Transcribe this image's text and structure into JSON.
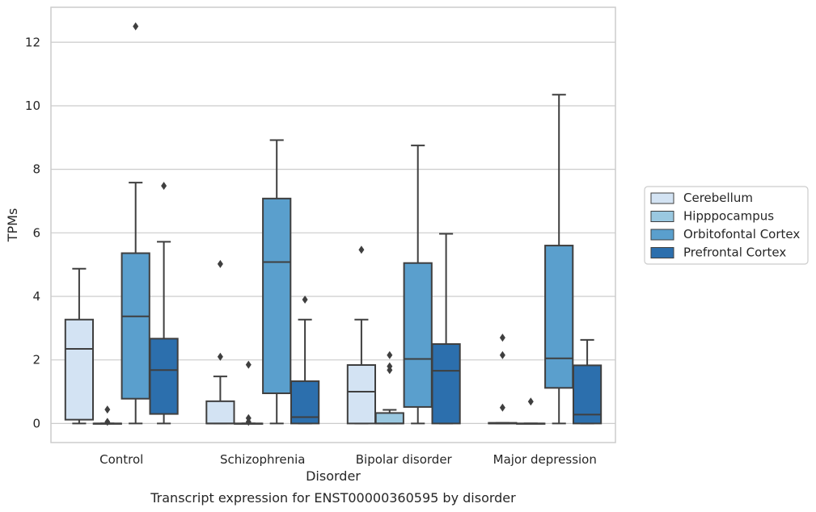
{
  "chart_data": {
    "type": "box",
    "xlabel": "Disorder",
    "ylabel": "TPMs",
    "caption": "Transcript expression for ENST00000360595 by disorder",
    "ylim": [
      -0.6,
      13.1
    ],
    "yticks": [
      0,
      2,
      4,
      6,
      8,
      10,
      12
    ],
    "grid": "horizontal",
    "legend_position": "right",
    "categories": [
      "Control",
      "Schizophrenia",
      "Bipolar disorder",
      "Major depression"
    ],
    "series": [
      {
        "name": "Cerebellum",
        "color": "#d3e3f3",
        "boxes": [
          {
            "whislo": 0.0,
            "q1": 0.12,
            "med": 2.35,
            "q3": 3.27,
            "whishi": 4.87,
            "fliers": []
          },
          {
            "whislo": 0.0,
            "q1": 0.0,
            "med": 0.0,
            "q3": 0.7,
            "whishi": 1.48,
            "fliers": [
              2.1,
              5.02
            ]
          },
          {
            "whislo": 0.0,
            "q1": 0.0,
            "med": 1.0,
            "q3": 1.84,
            "whishi": 3.27,
            "fliers": [
              5.47
            ]
          },
          {
            "whislo": 0.0,
            "q1": 0.0,
            "med": 0.0,
            "q3": 0.02,
            "whishi": 0.02,
            "fliers": [
              0.5,
              2.15,
              2.7
            ]
          }
        ]
      },
      {
        "name": "Hipppocampus",
        "color": "#9ac8e0",
        "boxes": [
          {
            "whislo": 0.0,
            "q1": 0.0,
            "med": 0.0,
            "q3": 0.0,
            "whishi": 0.0,
            "fliers": [
              0.05,
              0.44
            ]
          },
          {
            "whislo": 0.0,
            "q1": 0.0,
            "med": 0.0,
            "q3": 0.0,
            "whishi": 0.0,
            "fliers": [
              0.05,
              0.17,
              1.85
            ]
          },
          {
            "whislo": 0.0,
            "q1": 0.0,
            "med": 0.0,
            "q3": 0.33,
            "whishi": 0.43,
            "fliers": [
              1.68,
              1.8,
              2.15
            ]
          },
          {
            "whislo": 0.0,
            "q1": 0.0,
            "med": 0.0,
            "q3": 0.0,
            "whishi": 0.0,
            "fliers": [
              0.69
            ]
          }
        ]
      },
      {
        "name": "Orbitofontal Cortex",
        "color": "#5a9fcd",
        "boxes": [
          {
            "whislo": 0.0,
            "q1": 0.78,
            "med": 3.37,
            "q3": 5.36,
            "whishi": 7.58,
            "fliers": [
              12.5
            ]
          },
          {
            "whislo": 0.0,
            "q1": 0.95,
            "med": 5.08,
            "q3": 7.08,
            "whishi": 8.92,
            "fliers": []
          },
          {
            "whislo": 0.0,
            "q1": 0.52,
            "med": 2.03,
            "q3": 5.05,
            "whishi": 8.75,
            "fliers": []
          },
          {
            "whislo": 0.0,
            "q1": 1.12,
            "med": 2.05,
            "q3": 5.6,
            "whishi": 10.35,
            "fliers": []
          }
        ]
      },
      {
        "name": "Prefrontal Cortex",
        "color": "#2c6fad",
        "boxes": [
          {
            "whislo": 0.0,
            "q1": 0.3,
            "med": 1.68,
            "q3": 2.67,
            "whishi": 5.72,
            "fliers": [
              7.48
            ]
          },
          {
            "whislo": 0.0,
            "q1": 0.0,
            "med": 0.2,
            "q3": 1.33,
            "whishi": 3.27,
            "fliers": [
              3.9
            ]
          },
          {
            "whislo": 0.0,
            "q1": 0.0,
            "med": 1.66,
            "q3": 2.5,
            "whishi": 5.97,
            "fliers": []
          },
          {
            "whislo": 0.0,
            "q1": 0.0,
            "med": 0.28,
            "q3": 1.83,
            "whishi": 2.63,
            "fliers": []
          }
        ]
      }
    ]
  }
}
